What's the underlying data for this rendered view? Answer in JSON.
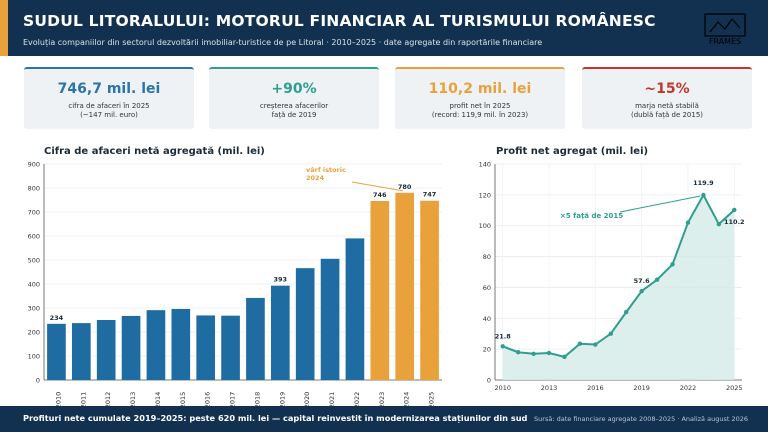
{
  "header": {
    "title": "SUDUL LITORALULUI: MOTORUL FINANCIAR AL TURISMULUI ROMÂNESC",
    "subtitle": "Evoluția companiilor din sectorul dezvoltării imobiliar-turistice de pe Litoral · 2010–2025 · date agregate din raportările financiare",
    "logo_text": "FRAMES"
  },
  "kpis": [
    {
      "value": "746,7 mil. lei",
      "label": "cifra de afaceri în 2025\n(~147 mil. euro)",
      "color": "#2b74aa"
    },
    {
      "value": "+90%",
      "label": "creșterea afacerilor\nfață de 2019",
      "color": "#2e9e8f"
    },
    {
      "value": "110,2 mil. lei",
      "label": "profit net în 2025\n(record: 119,9 mil. în 2023)",
      "color": "#e9a23b"
    },
    {
      "value": "~15%",
      "label": "marja netă stabilă\n(dublă față de 2015)",
      "color": "#c0392b"
    }
  ],
  "chart_data": [
    {
      "type": "bar",
      "title": "Cifra de afaceri netă agregată (mil. lei)",
      "categories": [
        "2010",
        "2011",
        "2012",
        "2013",
        "2014",
        "2015",
        "2016",
        "2017",
        "2018",
        "2019",
        "2020",
        "2021",
        "2022",
        "2023",
        "2024",
        "2025"
      ],
      "values": [
        234,
        237,
        250,
        267,
        291,
        296,
        269,
        268,
        342,
        393,
        466,
        505,
        590,
        746,
        780,
        747
      ],
      "highlight_from_index": 13,
      "colors": {
        "base": "#1f6ca3",
        "highlight": "#e9a23b"
      },
      "ylim": [
        0,
        900
      ],
      "yticks": [
        0,
        100,
        200,
        300,
        400,
        500,
        600,
        700,
        800,
        900
      ],
      "data_labels": [
        {
          "index": 0,
          "text": "234"
        },
        {
          "index": 9,
          "text": "393"
        },
        {
          "index": 13,
          "text": "746"
        },
        {
          "index": 14,
          "text": "780"
        },
        {
          "index": 15,
          "text": "747"
        }
      ],
      "annotation": {
        "line1": "vârf istoric",
        "line2": "2024",
        "target_index": 14
      },
      "grid": true
    },
    {
      "type": "area",
      "title": "Profit net agregat (mil. lei)",
      "x": [
        2010,
        2011,
        2012,
        2013,
        2014,
        2015,
        2016,
        2017,
        2018,
        2019,
        2020,
        2021,
        2022,
        2023,
        2024,
        2025
      ],
      "values": [
        21.8,
        18.0,
        17.0,
        17.5,
        15.0,
        23.5,
        23.0,
        30.0,
        44.0,
        57.6,
        65.0,
        75.0,
        102.0,
        119.9,
        101.0,
        110.2
      ],
      "colors": {
        "line": "#2e9e8f",
        "fill": "#d7ece9"
      },
      "ylim": [
        0,
        140
      ],
      "yticks": [
        0,
        20,
        40,
        60,
        80,
        100,
        120,
        140
      ],
      "xticks": [
        2010,
        2013,
        2016,
        2019,
        2022,
        2025
      ],
      "data_labels": [
        {
          "index": 0,
          "text": "21.8"
        },
        {
          "index": 9,
          "text": "57.6"
        },
        {
          "index": 13,
          "text": "119.9"
        },
        {
          "index": 15,
          "text": "110.2"
        }
      ],
      "annotation": {
        "text": "×5 față de 2015",
        "target_index": 13
      },
      "grid": true
    }
  ],
  "footer": {
    "left": "Profituri nete cumulate 2019–2025: peste 620 mil. lei — capital reinvestit în modernizarea stațiunilor din sud",
    "right": "Sursă: date financiare agregate 2008–2025 · Analiză august 2026"
  }
}
